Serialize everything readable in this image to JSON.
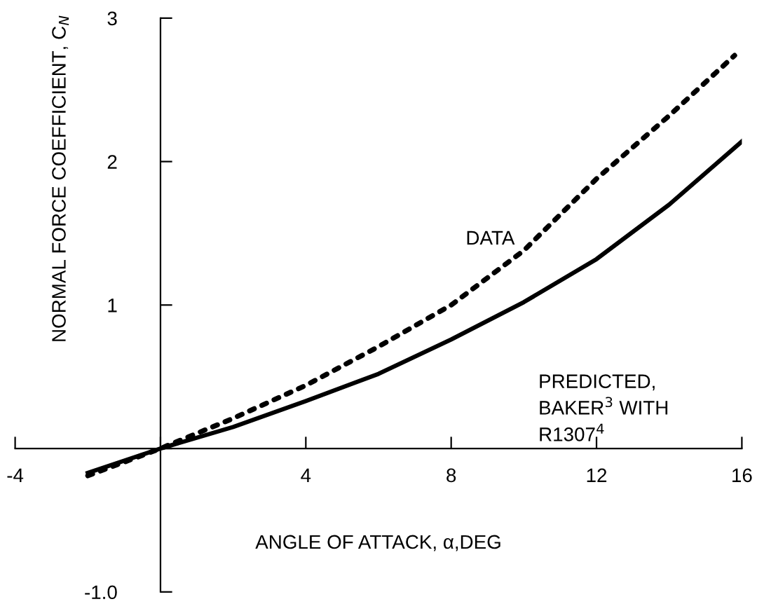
{
  "chart_data": {
    "type": "line",
    "xlabel": "ANGLE OF ATTACK, α,DEG",
    "ylabel": "NORMAL FORCE COEFFICIENT, C$_{N}$",
    "xlim": [
      -4,
      16
    ],
    "xticks": [
      -4,
      {
        "value": 0,
        "label": null
      },
      4,
      8,
      12,
      16
    ],
    "ylim": [
      -1,
      3
    ],
    "yticks": [
      {
        "value": -1,
        "label": "-1.0"
      },
      {
        "value": 0,
        "label": null
      },
      1,
      2,
      3
    ],
    "grid": false,
    "legend": false,
    "series": [
      {
        "name": "DATA",
        "color": "#000000",
        "line_style": "dotted",
        "x": [
          -2,
          0,
          2,
          4,
          6,
          8,
          10,
          12,
          14,
          15.8
        ],
        "values": [
          -0.19,
          0,
          0.21,
          0.44,
          0.71,
          1.0,
          1.38,
          1.88,
          2.32,
          2.74
        ]
      },
      {
        "name": "PREDICTED,\nBAKER$^{3}$ WITH\nR1307$^{4}$",
        "color": "#000000",
        "line_style": "solid",
        "x": [
          -2,
          0,
          2,
          4,
          6,
          8,
          10,
          12,
          14,
          16
        ],
        "values": [
          -0.17,
          0,
          0.15,
          0.33,
          0.52,
          0.76,
          1.02,
          1.32,
          1.7,
          2.14
        ]
      }
    ]
  }
}
